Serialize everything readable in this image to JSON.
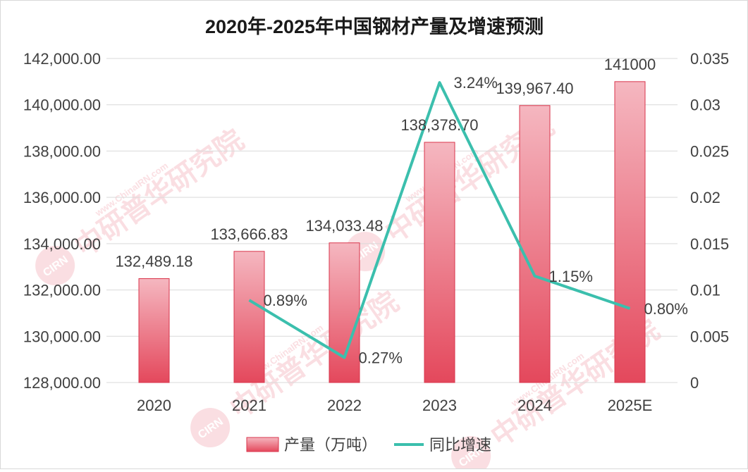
{
  "chart_data": {
    "type": "bar+line",
    "title": "2020年-2025年中国钢材产量及增速预测",
    "categories": [
      "2020",
      "2021",
      "2022",
      "2023",
      "2024",
      "2025E"
    ],
    "series": [
      {
        "name": "产量（万吨）",
        "type": "bar",
        "axis": "left",
        "values": [
          132489.18,
          133666.83,
          134033.48,
          138378.7,
          139967.4,
          141000
        ],
        "labels": [
          "132,489.18",
          "133,666.83",
          "134,033.48",
          "138,378.70",
          "139,967.40",
          "141000"
        ]
      },
      {
        "name": "同比增速",
        "type": "line",
        "axis": "right",
        "values": [
          null,
          0.0089,
          0.0027,
          0.0324,
          0.0115,
          0.008
        ],
        "labels": [
          "",
          "0.89%",
          "0.27%",
          "3.24%",
          "1.15%",
          "0.80%"
        ]
      }
    ],
    "y_left": {
      "min": 128000,
      "max": 142000,
      "ticks": [
        128000,
        130000,
        132000,
        134000,
        136000,
        138000,
        140000,
        142000
      ],
      "tick_labels": [
        "128,000.00",
        "130,000.00",
        "132,000.00",
        "134,000.00",
        "136,000.00",
        "138,000.00",
        "140,000.00",
        "142,000.00"
      ]
    },
    "y_right": {
      "min": 0,
      "max": 0.035,
      "ticks": [
        0,
        0.005,
        0.01,
        0.015,
        0.02,
        0.025,
        0.03,
        0.035
      ],
      "tick_labels": [
        "0",
        "0.005",
        "0.01",
        "0.015",
        "0.02",
        "0.025",
        "0.03",
        "0.035"
      ]
    },
    "grid": true,
    "legend_position": "bottom",
    "colors": {
      "bar_top": "#f5b7c0",
      "bar_bottom": "#e4485c",
      "bar_edge": "#d9364c",
      "line": "#3bbfad",
      "grid": "#d9d9d9",
      "text": "#404040",
      "title": "#1a1a1a"
    },
    "watermark": "中研普华研究院 www.ChinaIRN.com CIRN"
  }
}
